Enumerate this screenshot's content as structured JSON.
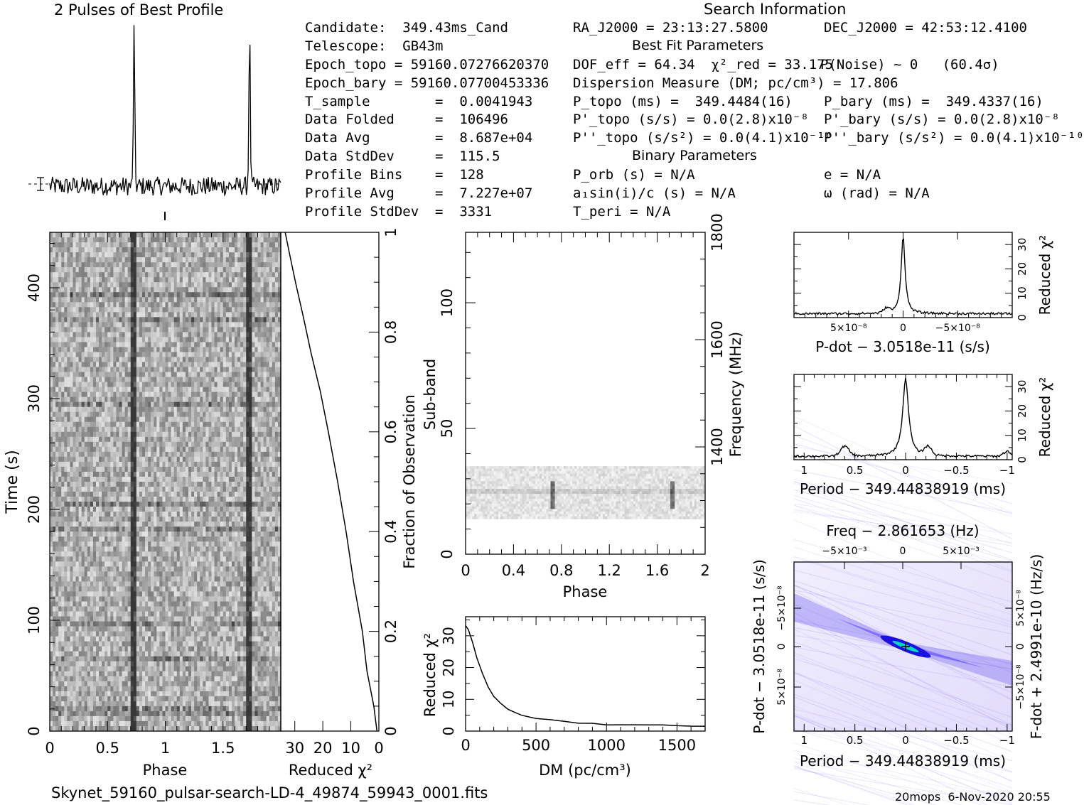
{
  "headers": {
    "profile_title": "2 Pulses of Best Profile",
    "search_info": "Search Information",
    "best_fit": "Best Fit Parameters",
    "binary": "Binary Parameters"
  },
  "info_left": [
    "Candidate:  349.43ms_Cand",
    "Telescope:  GB43m",
    "Epoch_topo = 59160.07276620370",
    "Epoch_bary = 59160.07700453336",
    "T_sample        =  0.0041943",
    "Data Folded     =  106496",
    "Data Avg        =  8.687e+04",
    "Data StdDev     =  115.5",
    "Profile Bins    =  128",
    "Profile Avg     =  7.227e+07",
    "Profile StdDev  =  3331"
  ],
  "info_mid": [
    "RA_J2000 = 23:13:27.5800",
    "",
    "DOF_eff = 64.34  χ²_red = 33.175",
    "Dispersion Measure (DM; pc/cm³) = 17.806",
    "P_topo (ms) =  349.4484(16)",
    "P'_topo (s/s) = 0.0(2.8)x10⁻⁸",
    "P''_topo (s/s²) = 0.0(4.1)x10⁻¹⁰",
    "",
    "P_orb (s) = N/A",
    "a₁sin(i)/c (s) = N/A",
    "T_peri = N/A"
  ],
  "info_right": [
    "DEC_J2000 = 42:53:12.4100",
    "",
    "P(Noise) ~ 0   (60.4σ)",
    "",
    "P_bary (ms) =  349.4337(16)",
    "P'_bary (s/s) = 0.0(2.8)x10⁻⁸",
    "P''_bary (s/s²) = 0.0(4.1)x10⁻¹⁰",
    "",
    "e = N/A",
    "ω (rad) = N/A",
    ""
  ],
  "footer": {
    "filename": "Skynet_59160_pulsar-search-LD-4_49874_59943_0001.fits",
    "stamp": "20mops  6-Nov-2020 20:55"
  },
  "colors": {
    "background": "#ffffff",
    "ink": "#000000",
    "cmap_low": "#ffffff",
    "cmap_mid": "#5a3cff",
    "cmap_peak": "#00e0c8"
  },
  "chart_data": [
    {
      "id": "profile",
      "type": "line",
      "title": "2 Pulses of Best Profile",
      "x_range": [
        0,
        2
      ],
      "pulse_phases": [
        0.73,
        1.73
      ],
      "pulse_peak_relative": 1.0,
      "noise_level_relative": 0.06,
      "xlabel": "",
      "ylabel": ""
    },
    {
      "id": "time_phase",
      "type": "heatmap",
      "xlabel": "Phase",
      "ylabel": "Time (s)",
      "xlim": [
        0,
        2
      ],
      "ylim": [
        0,
        450
      ],
      "x_ticks": [
        "0",
        "0.5",
        "1",
        "1.5"
      ],
      "y_ticks": [
        "0",
        "100",
        "200",
        "300",
        "400"
      ],
      "pulse_phases": [
        0.73,
        1.73
      ]
    },
    {
      "id": "time_chi2",
      "type": "line",
      "xlabel": "Reduced χ²",
      "ylabel": "Fraction of Observation",
      "xlim": [
        0,
        35
      ],
      "ylim": [
        0,
        1
      ],
      "x_ticks": [
        "30",
        "20",
        "10",
        "0"
      ],
      "y_ticks": [
        "0",
        "0.2",
        "0.4",
        "0.6",
        "0.8",
        "1"
      ],
      "x": [
        0.5,
        2,
        4,
        6,
        9,
        12,
        15,
        18,
        21,
        24,
        27,
        30,
        32,
        33.5
      ],
      "y": [
        0,
        0.05,
        0.12,
        0.2,
        0.3,
        0.4,
        0.5,
        0.6,
        0.68,
        0.76,
        0.83,
        0.9,
        0.96,
        1.0
      ]
    },
    {
      "id": "subband_phase",
      "type": "heatmap",
      "xlabel": "Phase",
      "ylabel": "Sub-band",
      "y2label": "Frequency (MHz)",
      "xlim": [
        0,
        2
      ],
      "ylim": [
        0,
        128
      ],
      "y2lim": [
        1200,
        1800
      ],
      "x_ticks": [
        "0",
        "0.4",
        "0.8",
        "1.2",
        "1.6",
        "2"
      ],
      "y_ticks": [
        "0",
        "50",
        "100"
      ],
      "y2_ticks": [
        "1400",
        "1600",
        "1800"
      ],
      "band_subbands": [
        14,
        35
      ],
      "pulse_phases": [
        0.73,
        1.73
      ]
    },
    {
      "id": "dm_curve",
      "type": "line",
      "xlabel": "DM (pc/cm³)",
      "ylabel": "Reduced χ²",
      "xlim": [
        0,
        1700
      ],
      "ylim": [
        0,
        36
      ],
      "x_ticks": [
        "0",
        "500",
        "1000",
        "1500"
      ],
      "y_ticks": [
        "0",
        "10",
        "20",
        "30"
      ],
      "x": [
        0,
        20,
        50,
        80,
        120,
        160,
        200,
        250,
        300,
        350,
        400,
        500,
        600,
        700,
        800,
        900,
        1000,
        1100,
        1200,
        1300,
        1400,
        1500,
        1600,
        1700
      ],
      "y": [
        33.2,
        32,
        28,
        23,
        18,
        14,
        11,
        8.5,
        7,
        5.8,
        5,
        4.1,
        3.5,
        3.0,
        2.6,
        2.3,
        2.1,
        2.0,
        1.9,
        1.8,
        1.8,
        1.75,
        1.7,
        1.7
      ]
    },
    {
      "id": "pdot_chi2",
      "type": "line",
      "xlabel": "P-dot − 3.0518e-11 (s/s)",
      "ylabel": "Reduced χ²",
      "xlim": [
        1e-07,
        -1e-07
      ],
      "ylim": [
        0,
        35
      ],
      "x_ticks": [
        "5×10⁻⁸",
        "0",
        "−5×10⁻⁸"
      ],
      "y_ticks": [
        "0",
        "10",
        "20",
        "30"
      ],
      "peak": 33.2,
      "baseline": 1.6
    },
    {
      "id": "period_chi2",
      "type": "line",
      "xlabel": "Period − 349.44838919 (ms)",
      "ylabel": "Reduced χ²",
      "xlim": [
        1.1,
        -1.05
      ],
      "ylim": [
        0,
        35
      ],
      "x_ticks": [
        "1",
        "0.5",
        "0",
        "−0.5",
        "−1"
      ],
      "y_ticks": [
        "0",
        "10",
        "20",
        "30"
      ],
      "peak": 33.2,
      "baseline": 1.4
    },
    {
      "id": "period_pdot",
      "type": "heatmap",
      "title": "Freq − 2.861653 (Hz)",
      "xlabel": "Period − 349.44838919 (ms)",
      "ylabel": "P-dot − 3.0518e-11 (s/s)",
      "y2label": "F-dot + 2.4991e-10 (Hz/s)",
      "x_ticks": [
        "1",
        "0.5",
        "0",
        "−0.5",
        "−1"
      ],
      "top_ticks": [
        "−5×10⁻³",
        "0",
        "5×10⁻³"
      ],
      "y_ticks": [
        "−5×10⁻⁸",
        "0",
        "5×10⁻⁸"
      ],
      "y2_ticks": [
        "5×10⁻⁸",
        "0",
        "−5×10⁻⁸"
      ],
      "peak_at": [
        0,
        0
      ]
    }
  ]
}
